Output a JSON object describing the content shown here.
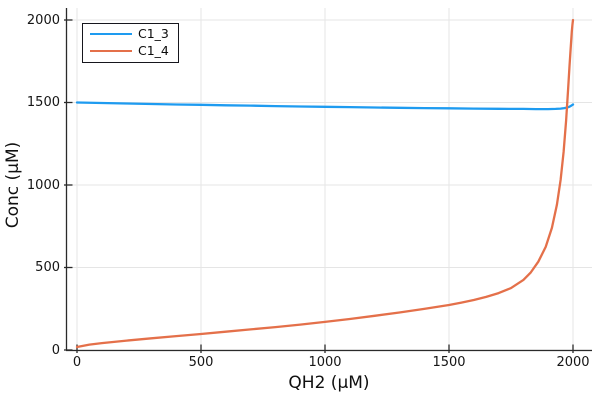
{
  "chart_data": {
    "type": "line",
    "title": "",
    "xlabel": "QH2 (μM)",
    "ylabel": "Conc (μM)",
    "xlim": [
      0,
      2000
    ],
    "ylim": [
      0,
      2000
    ],
    "xticks": [
      0,
      500,
      1000,
      1500,
      2000
    ],
    "yticks": [
      0,
      500,
      1000,
      1500,
      2000
    ],
    "grid": true,
    "legend_position": "top-left",
    "colors": {
      "background": "#ffffff",
      "grid": "#e5e5e5",
      "axis": "#2a2a2a",
      "tick_text": "#151515",
      "series1": "#1e9bf0",
      "series2": "#e4704a"
    },
    "series": [
      {
        "name": "C1_3",
        "color": "#1e9bf0",
        "x": [
          0,
          100,
          200,
          300,
          400,
          500,
          600,
          700,
          800,
          900,
          1000,
          1100,
          1200,
          1300,
          1400,
          1500,
          1600,
          1700,
          1800,
          1850,
          1900,
          1930,
          1950,
          1965,
          1975,
          1985,
          1990,
          1995,
          2000
        ],
        "y": [
          1500,
          1497,
          1494,
          1491,
          1488,
          1486,
          1483,
          1481,
          1478,
          1476,
          1474,
          1472,
          1470,
          1468,
          1466,
          1465,
          1463,
          1462,
          1461,
          1460,
          1460,
          1461,
          1463,
          1466,
          1469,
          1474,
          1478,
          1483,
          1488
        ]
      },
      {
        "name": "C1_4",
        "color": "#e4704a",
        "x": [
          0,
          50,
          100,
          200,
          300,
          400,
          500,
          600,
          700,
          800,
          900,
          1000,
          1100,
          1200,
          1300,
          1400,
          1500,
          1550,
          1600,
          1650,
          1700,
          1750,
          1800,
          1830,
          1860,
          1890,
          1915,
          1935,
          1950,
          1962,
          1972,
          1980,
          1986,
          1991,
          1995,
          1998,
          2000
        ],
        "y": [
          18,
          33,
          42,
          57,
          71,
          84,
          97,
          111,
          125,
          139,
          154,
          170,
          188,
          207,
          227,
          249,
          273,
          287,
          303,
          322,
          345,
          375,
          425,
          470,
          535,
          625,
          740,
          880,
          1030,
          1200,
          1390,
          1570,
          1720,
          1840,
          1930,
          1975,
          2000
        ]
      }
    ]
  }
}
